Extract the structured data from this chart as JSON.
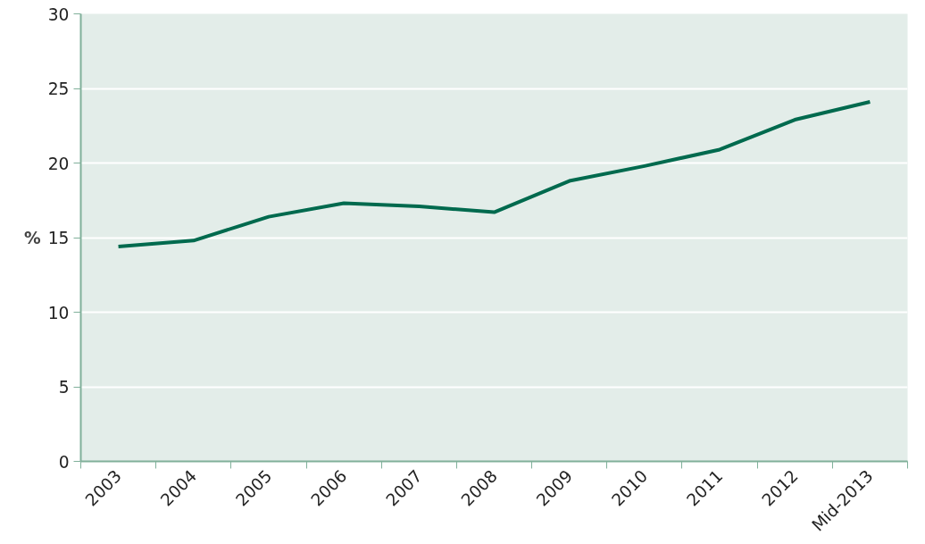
{
  "chart_data": {
    "type": "line",
    "ylabel": "%",
    "categories": [
      "2003",
      "2004",
      "2005",
      "2006",
      "2007",
      "2008",
      "2009",
      "2010",
      "2011",
      "2012",
      "Mid-2013"
    ],
    "series": [
      {
        "color": "#006a4e",
        "values": [
          14.4,
          14.8,
          16.4,
          17.3,
          17.1,
          16.7,
          18.8,
          19.8,
          20.9,
          22.9,
          24.1
        ]
      }
    ],
    "ylim": [
      0,
      30
    ],
    "yticks": [
      0,
      5,
      10,
      15,
      20,
      25,
      30
    ],
    "grid": "y",
    "marker": "none",
    "line_style": "solid"
  }
}
